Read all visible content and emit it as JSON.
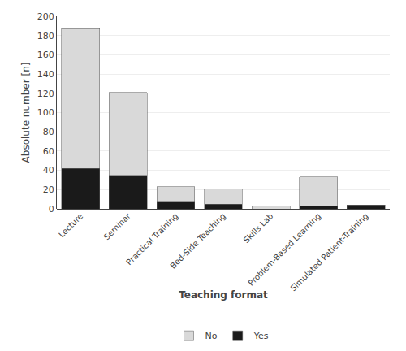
{
  "chart_data": {
    "type": "bar",
    "stacked": true,
    "categories": [
      "Lecture",
      "Seminar",
      "Practical Training",
      "Bed-Side Teaching",
      "Skills Lab",
      "Problem-Based Learning",
      "Simulated Patient-Training"
    ],
    "series": [
      {
        "name": "Yes",
        "color": "#1a1a1a",
        "values": [
          42,
          35,
          8,
          5,
          0,
          3,
          4
        ]
      },
      {
        "name": "No",
        "color": "#d9d9d9",
        "values": [
          145,
          86,
          15,
          16,
          3,
          30,
          0
        ]
      }
    ],
    "xlabel": "Teaching format",
    "ylabel": "Absolute number [n]",
    "ylim": [
      0,
      200
    ],
    "yticks": [
      0,
      20,
      40,
      60,
      80,
      100,
      120,
      140,
      160,
      180,
      200
    ],
    "grid": true,
    "legend": "bottom"
  }
}
